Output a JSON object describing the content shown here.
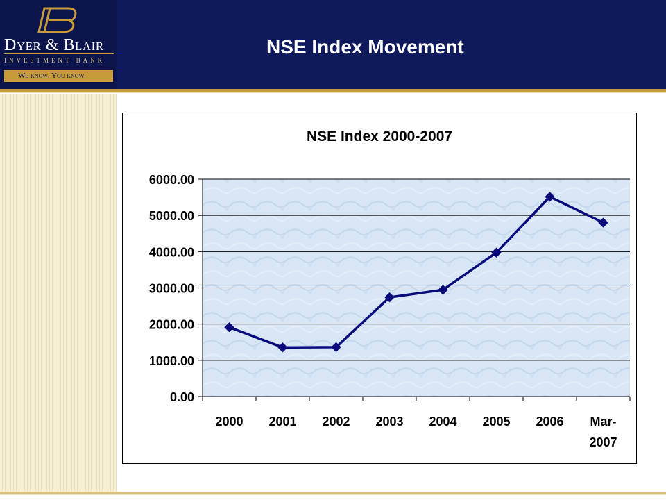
{
  "header": {
    "title": "NSE Index Movement",
    "logo": {
      "name": "Dyer & Blair",
      "subtitle": "INVESTMENT BANK",
      "tagline": "We know. You know."
    }
  },
  "colors": {
    "header_bg": "#0e1a5c",
    "accent_gold": "#c79a3a",
    "series_line": "#0a0a7a",
    "plot_bg": "#d8e6f5",
    "text": "#000000"
  },
  "chart_data": {
    "type": "line",
    "title": "NSE Index 2000-2007",
    "xlabel": "",
    "ylabel": "",
    "categories": [
      "2000",
      "2001",
      "2002",
      "2003",
      "2004",
      "2005",
      "2006",
      "Mar-2007"
    ],
    "category_labels": [
      [
        "2000"
      ],
      [
        "2001"
      ],
      [
        "2002"
      ],
      [
        "2003"
      ],
      [
        "2004"
      ],
      [
        "2005"
      ],
      [
        "2006"
      ],
      [
        "Mar-",
        "2007"
      ]
    ],
    "series": [
      {
        "values": [
          1913,
          1355,
          1363,
          2738,
          2946,
          3974,
          5514,
          4800
        ]
      }
    ],
    "ylim": [
      0,
      6000
    ],
    "yticks": [
      0,
      1000,
      2000,
      3000,
      4000,
      5000,
      6000
    ],
    "ytick_labels": [
      "0.00",
      "1000.00",
      "2000.00",
      "3000.00",
      "4000.00",
      "5000.00",
      "6000.00"
    ],
    "grid": true,
    "legend": "none",
    "marker": "diamond"
  }
}
